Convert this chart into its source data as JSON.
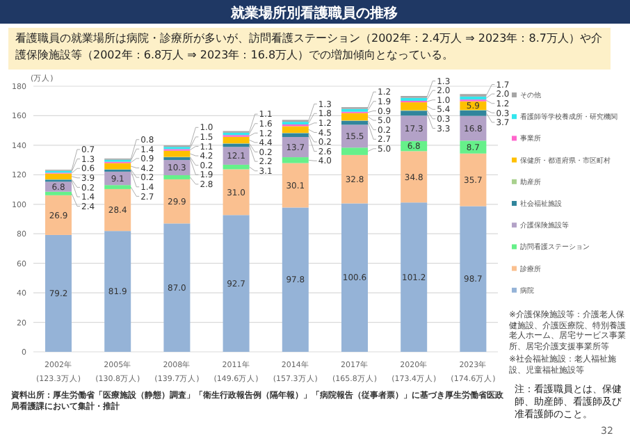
{
  "chart_data": {
    "type": "bar",
    "stacked": true,
    "title": "就業場所別看護職員の推移",
    "subtitle": "看護職員の就業場所は病院・診療所が多いが、訪問看護ステーション（2002年：2.4万人 ⇒ 2023年：8.7万人）や介護保険施設等（2002年：6.8万人 ⇒ 2023年：16.8万人）での増加傾向となっている。",
    "ylabel": "(万人)",
    "categories": [
      "2002年",
      "2005年",
      "2008年",
      "2011年",
      "2014年",
      "2017年",
      "2020年",
      "2023年"
    ],
    "totals": [
      "(123.3万人)",
      "(130.8万人)",
      "(139.7万人)",
      "(149.6万人)",
      "(157.3万人)",
      "(165.8万人)",
      "(173.4万人)",
      "(174.6万人)"
    ],
    "series": [
      {
        "name": "病院",
        "color": "#95b3d7",
        "values": [
          79.2,
          81.9,
          87.0,
          92.7,
          97.8,
          100.6,
          101.2,
          98.7
        ],
        "value_labels": [
          "79.2",
          "81.9",
          "87.0",
          "92.7",
          "97.8",
          "100.6",
          "101.2",
          "98.7"
        ]
      },
      {
        "name": "診療所",
        "color": "#fac090",
        "values": [
          26.9,
          28.4,
          29.9,
          31.0,
          30.1,
          32.8,
          34.8,
          35.7
        ],
        "value_labels": [
          "26.9",
          "28.4",
          "29.9",
          "31.0",
          "30.1",
          "32.8",
          "34.8",
          "35.7"
        ]
      },
      {
        "name": "訪問看護ステーション",
        "color": "#66f08a",
        "values": [
          2.4,
          2.7,
          2.8,
          3.1,
          4.0,
          5.0,
          6.8,
          8.7
        ],
        "value_labels": [
          "2.4",
          "2.7",
          "2.8",
          "3.1",
          "4.0",
          "5.0",
          "6.8",
          "8.7"
        ]
      },
      {
        "name": "介護保険施設等",
        "color": "#b3a2c7",
        "values": [
          6.8,
          9.1,
          10.3,
          12.1,
          13.7,
          15.5,
          17.3,
          16.8
        ],
        "value_labels": [
          "6.8",
          "9.1",
          "10.3",
          "12.1",
          "13.7",
          "15.5",
          "17.3",
          "16.8"
        ]
      },
      {
        "name": "社会福祉施設",
        "color": "#31859c",
        "values": [
          1.4,
          1.4,
          1.9,
          2.2,
          2.6,
          2.7,
          3.3,
          3.7
        ],
        "value_labels": [
          "1.4",
          "1.4",
          "1.9",
          "2.2",
          "2.6",
          "2.7",
          "3.3",
          "3.7"
        ]
      },
      {
        "name": "助産所",
        "color": "#a9d18e",
        "values": [
          0.2,
          0.2,
          0.2,
          0.2,
          0.2,
          0.2,
          0.3,
          0.3
        ],
        "value_labels": [
          "0.2",
          "0.2",
          "0.2",
          "0.2",
          "0.2",
          "0.2",
          "0.3",
          "0.3"
        ]
      },
      {
        "name": "保健所・都道府県・市区町村",
        "color": "#ffc000",
        "values": [
          3.9,
          4.2,
          4.2,
          4.4,
          4.5,
          5.0,
          5.4,
          5.9
        ],
        "value_labels": [
          "3.9",
          "4.2",
          "4.2",
          "4.4",
          "4.5",
          "5.0",
          "5.4",
          "5.9"
        ]
      },
      {
        "name": "事業所",
        "color": "#ff66cc",
        "values": [
          0.6,
          0.9,
          1.1,
          1.2,
          1.2,
          0.9,
          1.0,
          1.2
        ],
        "value_labels": [
          "0.6",
          "0.9",
          "1.1",
          "1.2",
          "1.2",
          "0.9",
          "1.0",
          "1.2"
        ]
      },
      {
        "name": "看護師等学校養成所・研究機関",
        "color": "#33e6ee",
        "values": [
          1.3,
          1.4,
          1.5,
          1.6,
          1.8,
          1.9,
          2.0,
          2.0
        ],
        "value_labels": [
          "1.3",
          "1.4",
          "1.5",
          "1.6",
          "1.8",
          "1.9",
          "2.0",
          "2.0"
        ]
      },
      {
        "name": "その他",
        "color": "#a6a6a6",
        "values": [
          0.7,
          0.8,
          1.0,
          1.1,
          1.3,
          1.2,
          1.3,
          1.7
        ],
        "value_labels": [
          "0.7",
          "0.8",
          "1.0",
          "1.1",
          "1.3",
          "1.2",
          "1.3",
          "1.7"
        ]
      }
    ],
    "ylim": [
      0,
      180
    ],
    "yticks": [
      0,
      20,
      40,
      60,
      80,
      100,
      120,
      140,
      160,
      180
    ],
    "grid": "y",
    "legend": "right",
    "annotations": [
      "※介護保険施設等：介護老人保健施設、介護医療院、特別養護老人ホーム、居宅サービス事業所、居宅介護支援事業所等",
      "※社会福祉施設：老人福祉施設、児童福祉施設等",
      "注：看護職員とは、保健師、助産師、看護師及び准看護師のこと。",
      "資料出所：厚生労働省「医療施設（静態）調査」「衛生行政報告例（隔年報）」「病院報告（従事者票）」に基づき厚生労働省医政局看護課において集計・推計",
      "32"
    ]
  }
}
